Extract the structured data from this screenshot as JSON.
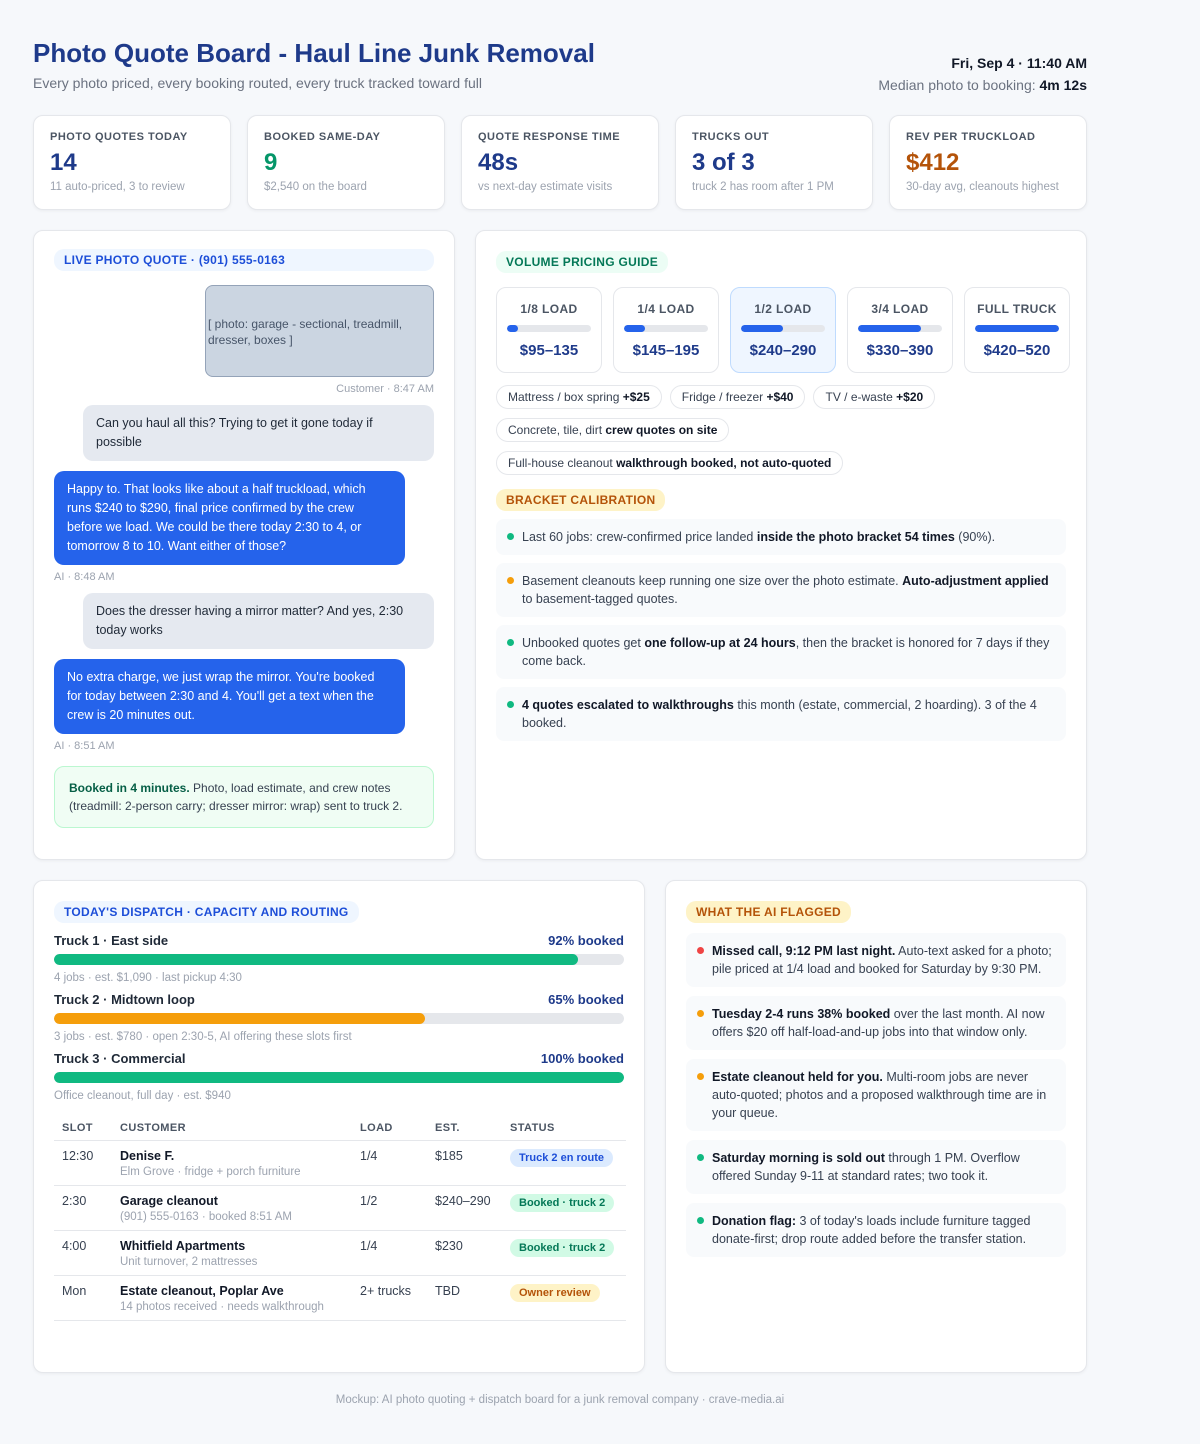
{
  "header": {
    "title": "Photo Quote Board - Haul Line Junk Removal",
    "subtitle": "Every photo priced, every booking routed, every truck tracked toward full",
    "datetime": "Fri, Sep 4 · 11:40 AM",
    "median_label": "Median photo to booking:",
    "median_value": "4m 12s"
  },
  "kpis": [
    {
      "label": "PHOTO QUOTES TODAY",
      "value": "14",
      "note": "11 auto-priced, 3 to review",
      "color": "#1e3a8a"
    },
    {
      "label": "BOOKED SAME-DAY",
      "value": "9",
      "note": "$2,540 on the board",
      "color": "#059669"
    },
    {
      "label": "QUOTE RESPONSE TIME",
      "value": "48s",
      "note": "vs next-day estimate visits",
      "color": "#1e3a8a"
    },
    {
      "label": "TRUCKS OUT",
      "value": "3 of 3",
      "note": "truck 2 has room after 1 PM",
      "color": "#1e3a8a"
    },
    {
      "label": "REV PER TRUCKLOAD",
      "value": "$412",
      "note": "30-day avg, cleanouts highest",
      "color": "#b45309"
    }
  ],
  "chat": {
    "tag": "LIVE PHOTO QUOTE · (901) 555-0163",
    "messages": [
      {
        "from": "customer",
        "photo": "[ photo: garage - sectional, treadmill, dresser, boxes ]",
        "meta": "Customer · 8:47 AM"
      },
      {
        "from": "customer",
        "text": "Can you haul all this? Trying to get it gone today if possible"
      },
      {
        "from": "ai",
        "text": "Happy to. That looks like about a half truckload, which runs $240 to $290, final price confirmed by the crew before we load. We could be there today 2:30 to 4, or tomorrow 8 to 10. Want either of those?",
        "meta": "AI · 8:48 AM"
      },
      {
        "from": "customer",
        "text": "Does the dresser having a mirror matter? And yes, 2:30 today works"
      },
      {
        "from": "ai",
        "text": "No extra charge, we just wrap the mirror. You're booked for today between 2:30 and 4. You'll get a text when the crew is 20 minutes out.",
        "meta": "AI · 8:51 AM"
      }
    ],
    "booked": [
      {
        "text": "Booked in 4 minutes.",
        "b": true
      },
      {
        "text": " Photo, load estimate, and crew notes (treadmill: 2-person carry; dresser mirror: wrap) sent to truck 2."
      }
    ]
  },
  "pricing": {
    "tag": "VOLUME PRICING GUIDE",
    "loads": [
      {
        "load": {
          "value": 0.125,
          "label": "1/8 LOAD"
        },
        "price": "$95–135"
      },
      {
        "load": {
          "value": 0.25,
          "label": "1/4 LOAD"
        },
        "price": "$145–195"
      },
      {
        "load": {
          "value": 0.5,
          "label": "1/2 LOAD"
        },
        "price": "$240–290",
        "selected": true
      },
      {
        "load": {
          "value": 0.75,
          "label": "3/4 LOAD"
        },
        "price": "$330–390"
      },
      {
        "load": {
          "value": 1,
          "label": "FULL TRUCK"
        },
        "price": "$420–520"
      }
    ],
    "addons": [
      [
        {
          "text": "Mattress / box spring "
        },
        {
          "text": "+$25",
          "b": true
        }
      ],
      [
        {
          "text": "Fridge / freezer "
        },
        {
          "text": "+$40",
          "b": true
        }
      ],
      [
        {
          "text": "TV / e-waste "
        },
        {
          "text": "+$20",
          "b": true
        }
      ],
      [
        {
          "text": "Concrete, tile, dirt "
        },
        {
          "text": "crew quotes on site",
          "b": true
        }
      ],
      [
        {
          "text": "Full-house cleanout "
        },
        {
          "text": "walkthrough booked, not auto-quoted",
          "b": true
        }
      ]
    ],
    "calibration_tag": "BRACKET CALIBRATION",
    "calibration": [
      {
        "dot": "#10b981",
        "parts": [
          {
            "text": "Last 60 jobs: crew-confirmed price landed "
          },
          {
            "text": "inside the photo bracket 54 times",
            "b": true
          },
          {
            "text": " (90%)."
          }
        ]
      },
      {
        "dot": "#f59e0b",
        "parts": [
          {
            "text": "Basement cleanouts keep running one size over the photo estimate. "
          },
          {
            "text": "Auto-adjustment applied",
            "b": true
          },
          {
            "text": " to basement-tagged quotes."
          }
        ]
      },
      {
        "dot": "#10b981",
        "parts": [
          {
            "text": "Unbooked quotes get "
          },
          {
            "text": "one follow-up at 24 hours",
            "b": true
          },
          {
            "text": ", then the bracket is honored for 7 days if they come back."
          }
        ]
      },
      {
        "dot": "#10b981",
        "parts": [
          {
            "text": "4 quotes escalated to walkthroughs",
            "b": true
          },
          {
            "text": " this month (estate, commercial, 2 hoarding). 3 of the 4 booked."
          }
        ]
      }
    ]
  },
  "dispatch": {
    "tag": "TODAY'S DISPATCH · CAPACITY AND ROUTING",
    "trucks": [
      {
        "name": "Truck 1 · East side",
        "booked": {
          "value": 92,
          "label": "92% booked"
        },
        "color": "#10b981",
        "note": "4 jobs · est. $1,090 · last pickup 4:30"
      },
      {
        "name": "Truck 2 · Midtown loop",
        "booked": {
          "value": 65,
          "label": "65% booked"
        },
        "color": "#f59e0b",
        "note": "3 jobs · est. $780 · open 2:30-5, AI offering these slots first"
      },
      {
        "name": "Truck 3 · Commercial",
        "booked": {
          "value": 100,
          "label": "100% booked"
        },
        "color": "#10b981",
        "note": "Office cleanout, full day · est. $940"
      }
    ],
    "columns": [
      "SLOT",
      "CUSTOMER",
      "LOAD",
      "EST.",
      "STATUS"
    ],
    "rows": [
      {
        "slot": "12:30",
        "customer": "Denise F.",
        "detail": "Elm Grove · fridge + porch furniture",
        "load": "1/4",
        "est": "$185",
        "status": "Truck 2 en route",
        "tone": "blue"
      },
      {
        "slot": "2:30",
        "customer": "Garage cleanout",
        "detail": "(901) 555-0163 · booked 8:51 AM",
        "load": "1/2",
        "est": "$240–290",
        "status": "Booked · truck 2",
        "tone": "green"
      },
      {
        "slot": "4:00",
        "customer": "Whitfield Apartments",
        "detail": "Unit turnover, 2 mattresses",
        "load": "1/4",
        "est": "$230",
        "status": "Booked · truck 2",
        "tone": "green"
      },
      {
        "slot": "Mon",
        "customer": "Estate cleanout, Poplar Ave",
        "detail": "14 photos received · needs walkthrough",
        "load": "2+ trucks",
        "est": "TBD",
        "status": "Owner review",
        "tone": "amber"
      }
    ]
  },
  "flags": {
    "tag": "WHAT THE AI FLAGGED",
    "items": [
      {
        "dot": "#ef4444",
        "parts": [
          {
            "text": "Missed call, 9:12 PM last night.",
            "b": true
          },
          {
            "text": " Auto-text asked for a photo; pile priced at 1/4 load and booked for Saturday by 9:30 PM."
          }
        ]
      },
      {
        "dot": "#f59e0b",
        "parts": [
          {
            "text": "Tuesday 2-4 runs 38% booked",
            "b": true
          },
          {
            "text": " over the last month. AI now offers $20 off half-load-and-up jobs into that window only."
          }
        ]
      },
      {
        "dot": "#f59e0b",
        "parts": [
          {
            "text": "Estate cleanout held for you.",
            "b": true
          },
          {
            "text": " Multi-room jobs are never auto-quoted; photos and a proposed walkthrough time are in your queue."
          }
        ]
      },
      {
        "dot": "#10b981",
        "parts": [
          {
            "text": "Saturday morning is sold out",
            "b": true
          },
          {
            "text": " through 1 PM. Overflow offered Sunday 9-11 at standard rates; two took it."
          }
        ]
      },
      {
        "dot": "#10b981",
        "parts": [
          {
            "text": "Donation flag:",
            "b": true
          },
          {
            "text": " 3 of today's loads include furniture tagged donate-first; drop route added before the transfer station."
          }
        ]
      }
    ]
  },
  "footer": "Mockup: AI photo quoting + dispatch board for a junk removal company · crave-media.ai"
}
